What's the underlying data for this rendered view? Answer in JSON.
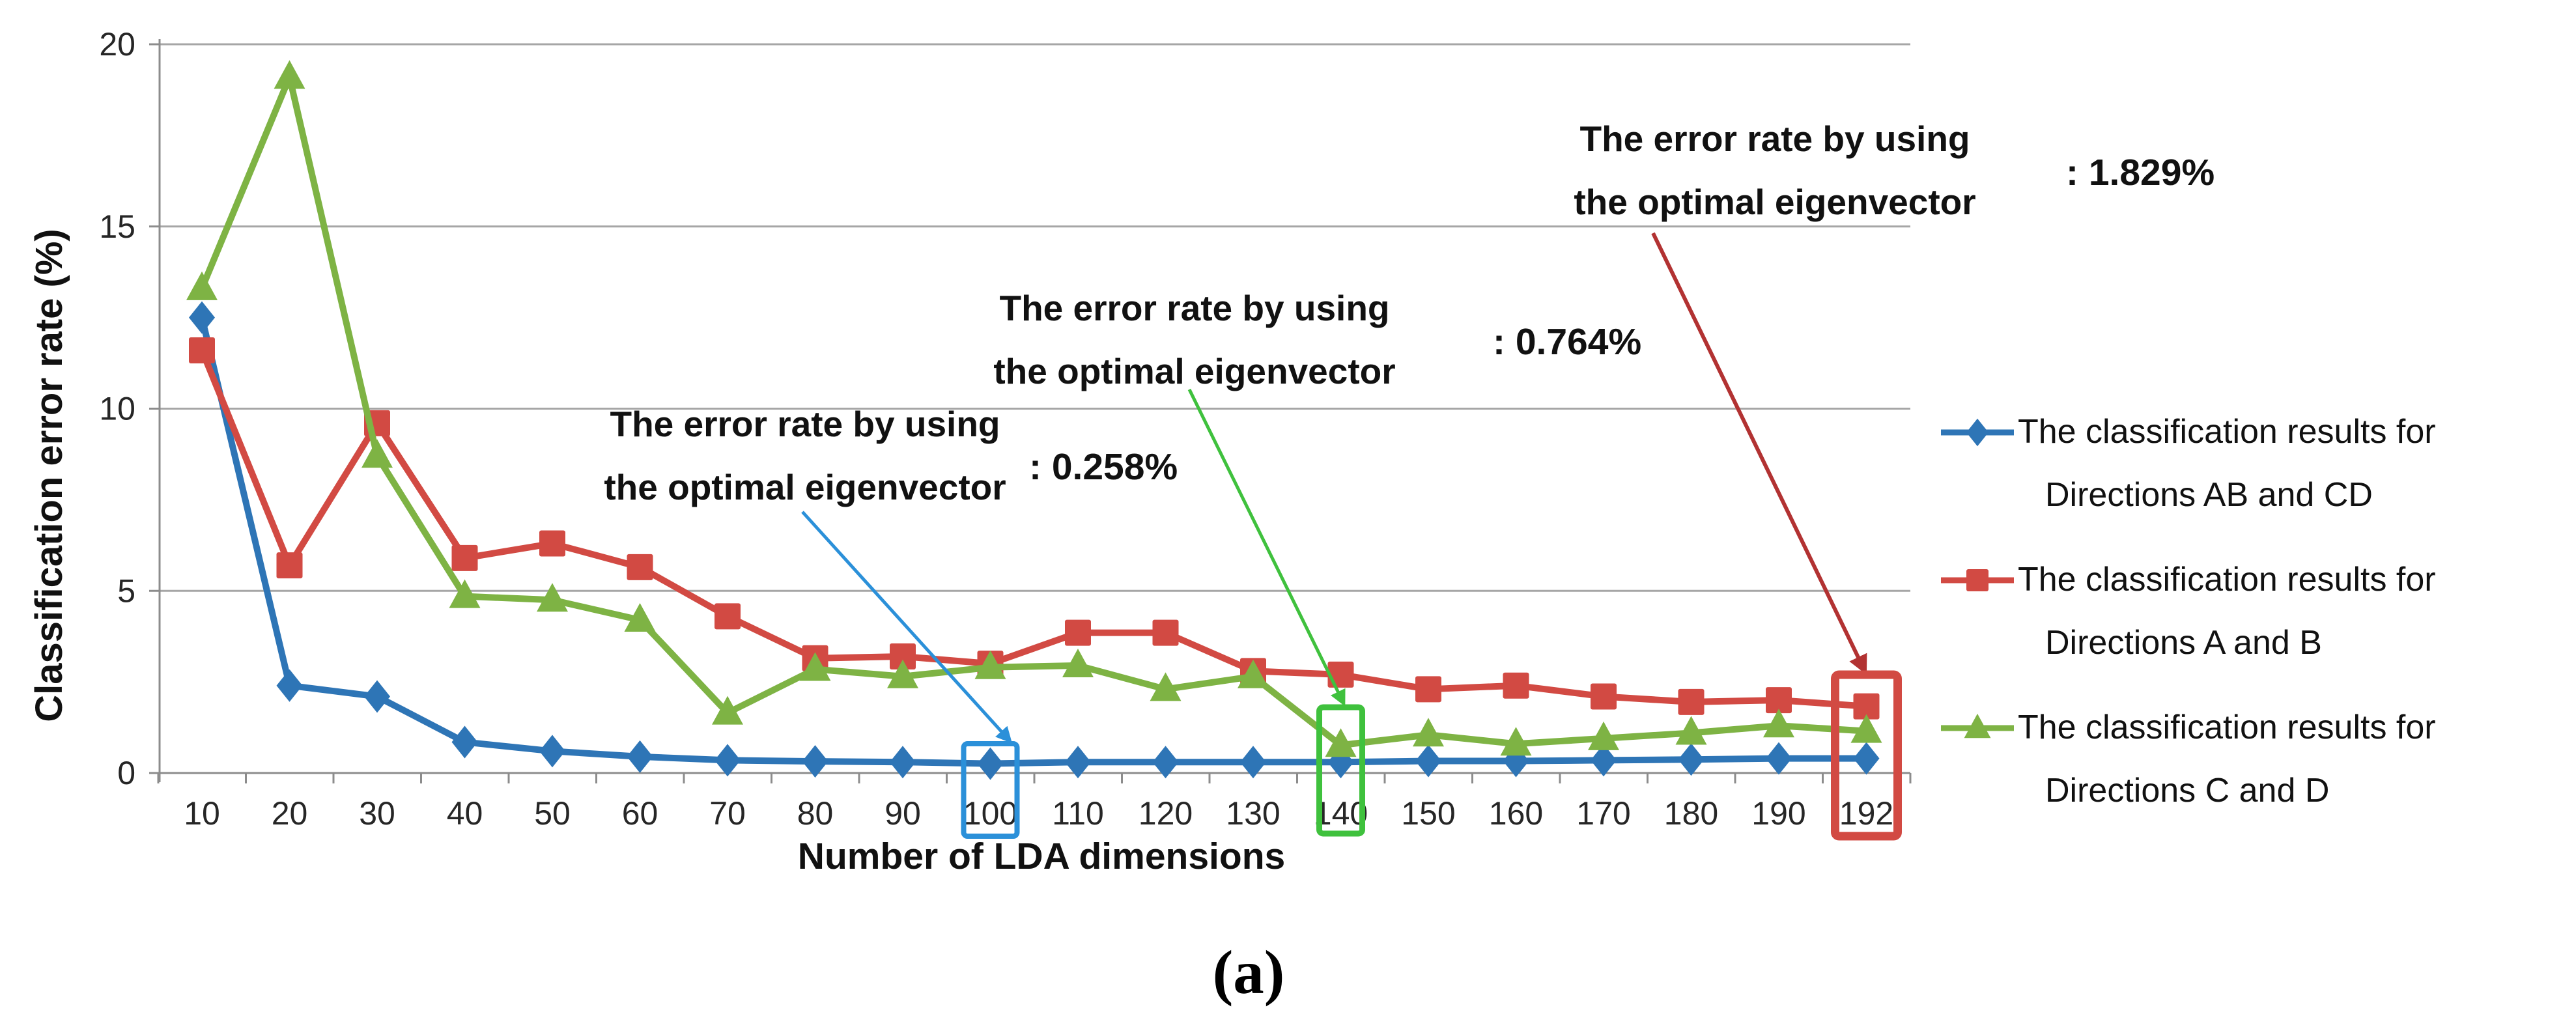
{
  "figure_caption": "(a)",
  "chart_data": {
    "type": "line",
    "title": "",
    "xlabel": "Number of LDA dimensions",
    "ylabel": "Classification error rate (%)",
    "ylim": [
      0,
      20
    ],
    "yticks": [
      0,
      5,
      10,
      15,
      20
    ],
    "grid": true,
    "legend_position": "right",
    "categories": [
      "10",
      "20",
      "30",
      "40",
      "50",
      "60",
      "70",
      "80",
      "90",
      "100",
      "110",
      "120",
      "130",
      "140",
      "150",
      "160",
      "170",
      "180",
      "190",
      "192"
    ],
    "series": [
      {
        "name": "The classification results for Directions AB and CD",
        "color": "#2E75B6",
        "marker": "diamond",
        "values": [
          12.5,
          2.4,
          2.1,
          0.85,
          0.6,
          0.45,
          0.35,
          0.32,
          0.3,
          0.258,
          0.3,
          0.3,
          0.3,
          0.3,
          0.33,
          0.33,
          0.35,
          0.37,
          0.4,
          0.4
        ]
      },
      {
        "name": "The classification results for Directions A and B",
        "color": "#D24A43",
        "marker": "square",
        "values": [
          11.6,
          5.7,
          9.6,
          5.9,
          6.3,
          5.65,
          4.3,
          3.15,
          3.2,
          3.0,
          3.85,
          3.85,
          2.8,
          2.7,
          2.3,
          2.4,
          2.1,
          1.95,
          2.0,
          1.829
        ]
      },
      {
        "name": "The classification results for Directions C and D",
        "color": "#7EB344",
        "marker": "triangle",
        "values": [
          13.3,
          19.1,
          8.7,
          4.85,
          4.75,
          4.2,
          1.65,
          2.85,
          2.65,
          2.9,
          2.95,
          2.3,
          2.65,
          0.764,
          1.05,
          0.8,
          0.95,
          1.1,
          1.3,
          1.15
        ]
      }
    ],
    "annotations": [
      {
        "line1": "The error rate by using",
        "line2": "the optimal eigenvector",
        "value": ": 0.258%",
        "target_category": "100",
        "box_color": "#2B90D9",
        "arrow_color": "#2B90D9"
      },
      {
        "line1": "The error rate by using",
        "line2": "the optimal eigenvector",
        "value": ": 0.764%",
        "target_category": "140",
        "box_color": "#3FC13D",
        "arrow_color": "#3FC13D"
      },
      {
        "line1": "The error rate by using",
        "line2": "the optimal eigenvector",
        "value": ": 1.829%",
        "target_category": "192",
        "box_color": "#D24A43",
        "arrow_color": "#B23232"
      }
    ],
    "axis_colors": {
      "grid": "#A6A6A6",
      "axis": "#8C8C8C",
      "tick_text": "#262626"
    }
  },
  "legend": {
    "items": [
      {
        "line1": "The classification results for",
        "line2": "Directions AB and CD"
      },
      {
        "line1": "The classification results for",
        "line2": "Directions A and B"
      },
      {
        "line1": "The classification results for",
        "line2": "Directions C and D"
      }
    ]
  }
}
